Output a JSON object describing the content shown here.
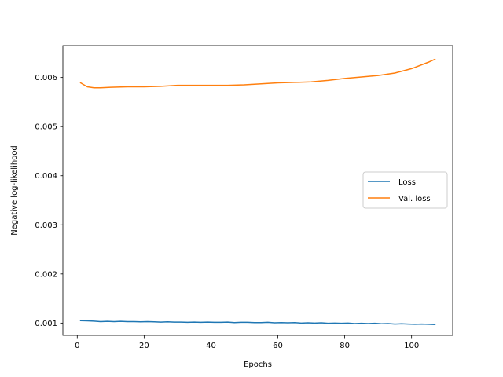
{
  "chart_data": {
    "type": "line",
    "title": "",
    "xlabel": "Epochs",
    "ylabel": "Negative log-likelihood",
    "xlim": [
      -4.3,
      112.3
    ],
    "ylim": [
      0.00075,
      0.00665
    ],
    "xticks": [
      0,
      20,
      40,
      60,
      80,
      100
    ],
    "xtick_labels": [
      "0",
      "20",
      "40",
      "60",
      "80",
      "100"
    ],
    "yticks": [
      0.001,
      0.002,
      0.003,
      0.004,
      0.005,
      0.006
    ],
    "ytick_labels": [
      "0.001",
      "0.002",
      "0.003",
      "0.004",
      "0.005",
      "0.006"
    ],
    "grid": false,
    "legend_position": "center-right",
    "series": [
      {
        "name": "Loss",
        "color": "#1f77b4",
        "x": [
          1,
          3,
          5,
          7,
          9,
          11,
          13,
          15,
          17,
          19,
          21,
          23,
          25,
          27,
          29,
          31,
          33,
          35,
          37,
          39,
          41,
          43,
          45,
          47,
          49,
          51,
          53,
          55,
          57,
          59,
          61,
          63,
          65,
          67,
          69,
          71,
          73,
          75,
          77,
          79,
          81,
          83,
          85,
          87,
          89,
          91,
          93,
          95,
          97,
          99,
          101,
          103,
          105,
          107
        ],
        "y": [
          0.00105,
          0.001045,
          0.00104,
          0.00103,
          0.001035,
          0.00103,
          0.001035,
          0.00103,
          0.00103,
          0.001025,
          0.00103,
          0.001025,
          0.00102,
          0.001025,
          0.00102,
          0.00102,
          0.001015,
          0.00102,
          0.001015,
          0.00102,
          0.001015,
          0.001015,
          0.00102,
          0.00101,
          0.001015,
          0.001015,
          0.00101,
          0.00101,
          0.001015,
          0.001005,
          0.00101,
          0.001005,
          0.00101,
          0.001,
          0.001005,
          0.001,
          0.001005,
          0.000995,
          0.001,
          0.000995,
          0.001,
          0.00099,
          0.000995,
          0.00099,
          0.000995,
          0.000985,
          0.00099,
          0.00098,
          0.000985,
          0.00098,
          0.000975,
          0.00098,
          0.000975,
          0.00097
        ]
      },
      {
        "name": "Val. loss",
        "color": "#ff7f0e",
        "x": [
          1,
          3,
          5,
          7,
          10,
          15,
          20,
          25,
          30,
          35,
          40,
          45,
          50,
          55,
          60,
          65,
          70,
          75,
          80,
          85,
          90,
          95,
          100,
          105,
          107
        ],
        "y": [
          0.00589,
          0.00581,
          0.00579,
          0.00579,
          0.0058,
          0.00581,
          0.00581,
          0.00582,
          0.00584,
          0.00584,
          0.00584,
          0.00584,
          0.00585,
          0.00587,
          0.00589,
          0.0059,
          0.00591,
          0.00594,
          0.00598,
          0.00601,
          0.00604,
          0.00609,
          0.00618,
          0.00631,
          0.00637
        ]
      }
    ]
  }
}
